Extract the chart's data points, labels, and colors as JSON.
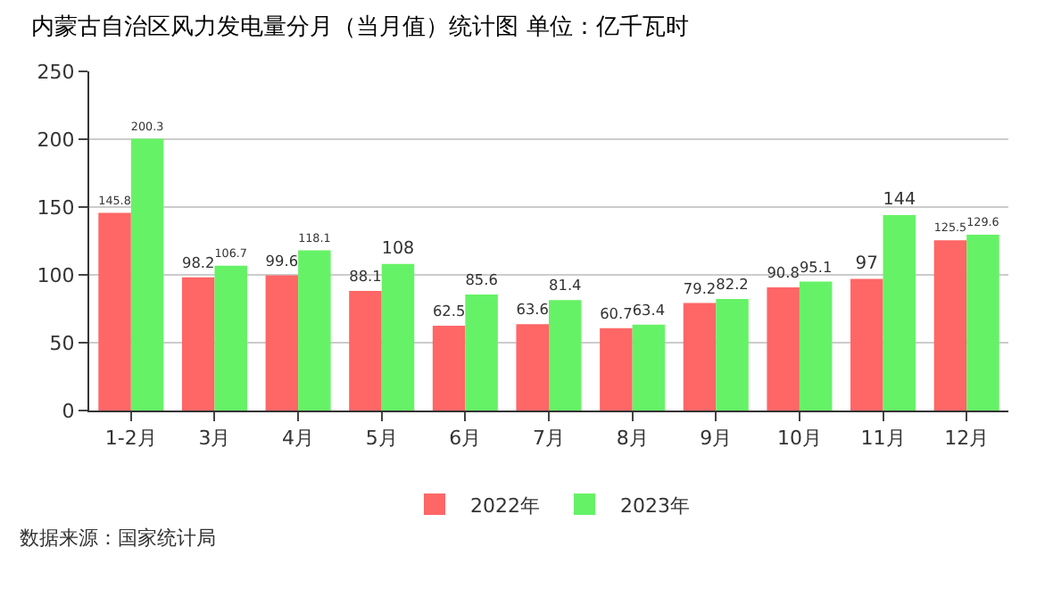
{
  "chart_data": {
    "type": "bar",
    "title": "内蒙古自治区风力发电量分月（当月值）统计图 单位：亿千瓦时",
    "categories": [
      "1-2月",
      "3月",
      "4月",
      "5月",
      "6月",
      "7月",
      "8月",
      "9月",
      "10月",
      "11月",
      "12月"
    ],
    "series": [
      {
        "name": "2022年",
        "color": "#ff6666",
        "values": [
          145.8,
          98.2,
          99.6,
          88.1,
          62.5,
          63.6,
          60.7,
          79.2,
          90.8,
          97,
          125.5
        ]
      },
      {
        "name": "2023年",
        "color": "#66f266",
        "values": [
          200.3,
          106.7,
          118.1,
          108,
          85.6,
          81.4,
          63.4,
          82.2,
          95.1,
          144,
          129.6
        ]
      }
    ],
    "ylim": [
      0,
      250
    ],
    "yticks": [
      0,
      50,
      100,
      150,
      200,
      250
    ],
    "grid": "y",
    "legend": "bottom",
    "data_labels": true,
    "annotations": [
      "数据来源：国家统计局"
    ]
  }
}
